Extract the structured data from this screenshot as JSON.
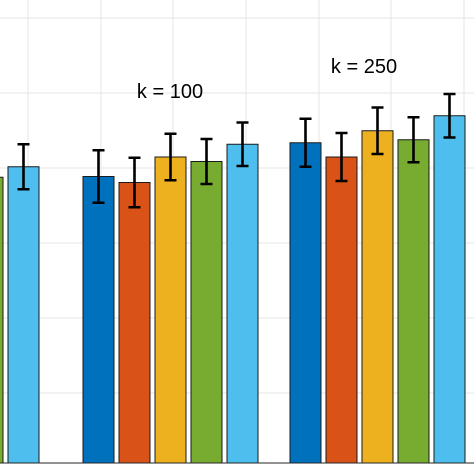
{
  "chart_data": {
    "type": "bar",
    "grid": true,
    "ylim": [
      0,
      1
    ],
    "group_labels": [
      "",
      "k = 100",
      "k = 250"
    ],
    "series": [
      {
        "color": "#0072BD",
        "values": [
          null,
          0.382,
          0.427
        ],
        "errors": [
          null,
          0.035,
          0.032
        ]
      },
      {
        "color": "#D95319",
        "values": [
          null,
          0.374,
          0.408
        ],
        "errors": [
          null,
          0.033,
          0.032
        ]
      },
      {
        "color": "#EDB120",
        "values": [
          null,
          0.408,
          0.443
        ],
        "errors": [
          null,
          0.031,
          0.031
        ]
      },
      {
        "color": "#77AC30",
        "values": [
          0.381,
          0.402,
          0.431
        ],
        "errors": [
          0.026,
          0.03,
          0.03
        ]
      },
      {
        "color": "#4DBEEE",
        "values": [
          0.395,
          0.425,
          0.463
        ],
        "errors": [
          0.03,
          0.029,
          0.029
        ]
      }
    ]
  }
}
